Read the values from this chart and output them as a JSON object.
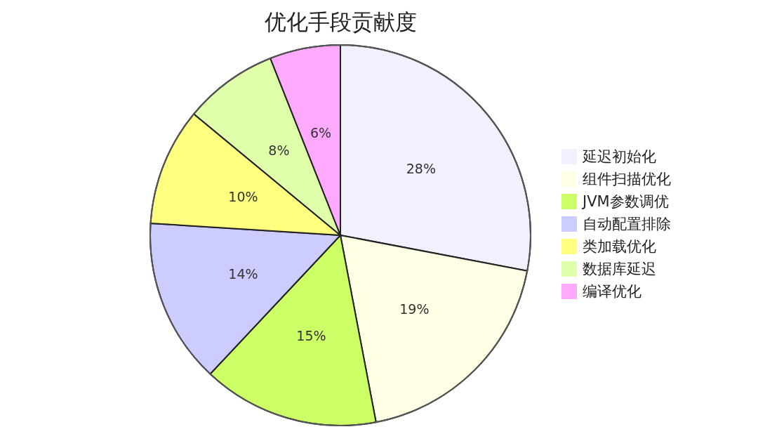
{
  "chart_data": {
    "type": "pie",
    "title": "优化手段贡献度",
    "categories": [
      "延迟初始化",
      "组件扫描优化",
      "JVM参数调优",
      "自动配置排除",
      "类加载优化",
      "数据库延迟",
      "编译优化"
    ],
    "values": [
      28,
      19,
      15,
      14,
      10,
      8,
      6
    ],
    "colors": [
      "#f0f0ff",
      "#ffffe6",
      "#ccff66",
      "#ccccff",
      "#ffff80",
      "#e0ffaa",
      "#ffaaff"
    ],
    "value_labels": [
      "28%",
      "19%",
      "15%",
      "14%",
      "10%",
      "8%",
      "6%"
    ],
    "legend": "right"
  }
}
